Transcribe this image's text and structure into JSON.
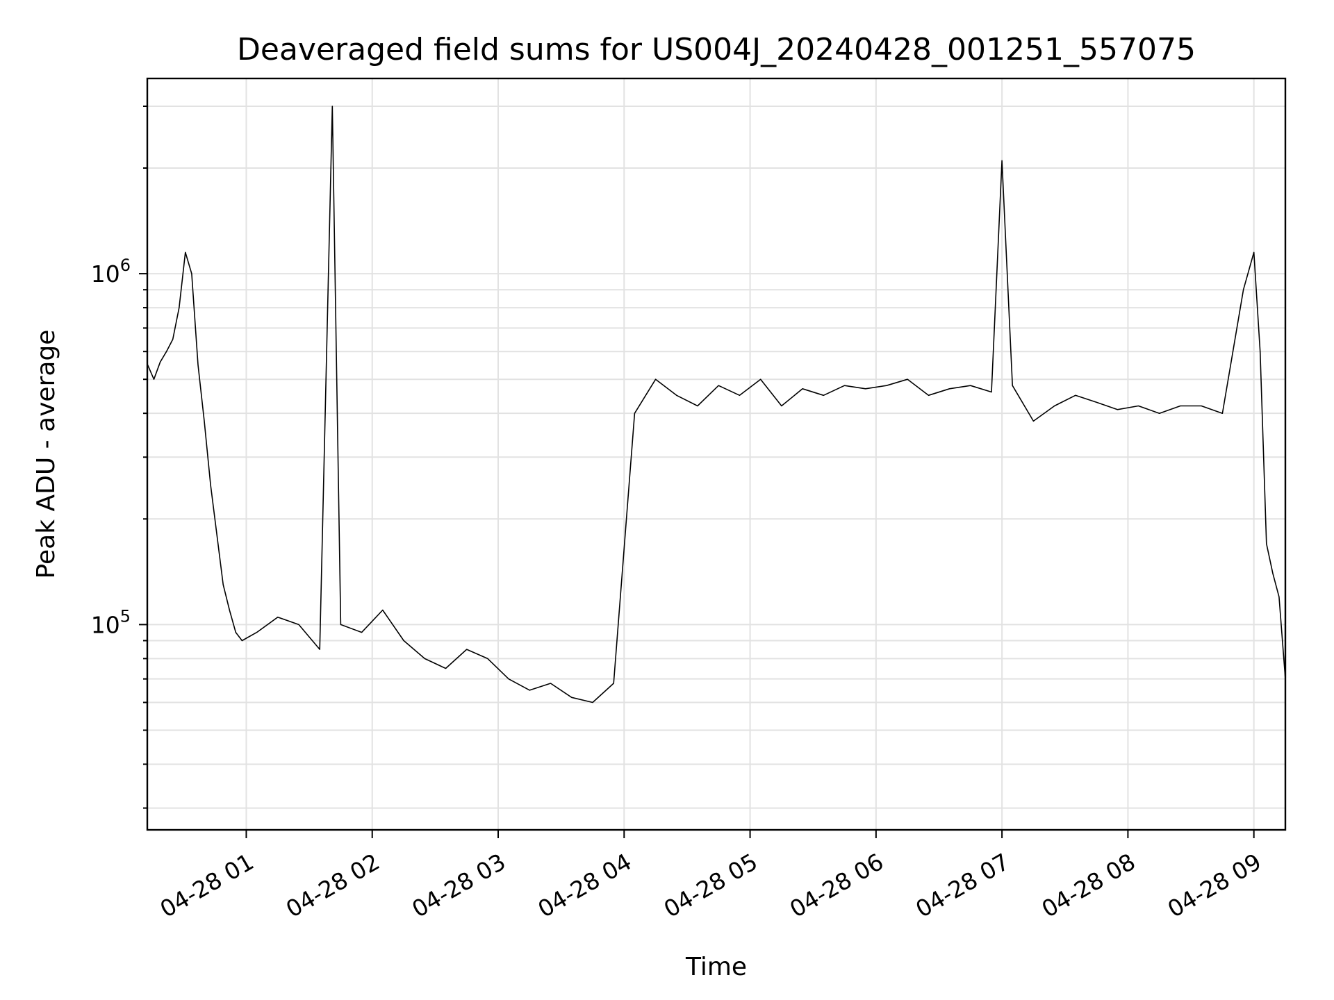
{
  "chart_data": {
    "type": "line",
    "title": "Deaveraged field sums for US004J_20240428_001251_557075",
    "xlabel": "Time",
    "ylabel": "Peak ADU - average",
    "yscale": "log",
    "ylim": [
      26000,
      3600000
    ],
    "xlim": [
      "2024-04-28 00:12:51",
      "2024-04-28 09:15:00"
    ],
    "x_ticks": [
      "2024-04-28 01:00",
      "2024-04-28 02:00",
      "2024-04-28 03:00",
      "2024-04-28 04:00",
      "2024-04-28 05:00",
      "2024-04-28 06:00",
      "2024-04-28 07:00",
      "2024-04-28 08:00",
      "2024-04-28 09:00"
    ],
    "x_tick_labels": [
      "04-28 01",
      "04-28 02",
      "04-28 03",
      "04-28 04",
      "04-28 05",
      "04-28 06",
      "04-28 07",
      "04-28 08",
      "04-28 09"
    ],
    "y_ticks": [
      {
        "value": 100000,
        "base": "10",
        "exp": "5"
      },
      {
        "value": 1000000,
        "base": "10",
        "exp": "6"
      }
    ],
    "grid": true,
    "line_color": "#000000",
    "series": [
      {
        "x": [
          "2024-04-28 00:13",
          "2024-04-28 00:16",
          "2024-04-28 00:19",
          "2024-04-28 00:22",
          "2024-04-28 00:25",
          "2024-04-28 00:28",
          "2024-04-28 00:31",
          "2024-04-28 00:34",
          "2024-04-28 00:37",
          "2024-04-28 00:40",
          "2024-04-28 00:43",
          "2024-04-28 00:46",
          "2024-04-28 00:49",
          "2024-04-28 00:52",
          "2024-04-28 00:55",
          "2024-04-28 00:58",
          "2024-04-28 01:05",
          "2024-04-28 01:15",
          "2024-04-28 01:25",
          "2024-04-28 01:35",
          "2024-04-28 01:41",
          "2024-04-28 01:45",
          "2024-04-28 01:55",
          "2024-04-28 02:05",
          "2024-04-28 02:15",
          "2024-04-28 02:25",
          "2024-04-28 02:35",
          "2024-04-28 02:45",
          "2024-04-28 02:55",
          "2024-04-28 03:05",
          "2024-04-28 03:15",
          "2024-04-28 03:25",
          "2024-04-28 03:35",
          "2024-04-28 03:45",
          "2024-04-28 03:55",
          "2024-04-28 04:05",
          "2024-04-28 04:15",
          "2024-04-28 04:25",
          "2024-04-28 04:35",
          "2024-04-28 04:45",
          "2024-04-28 04:55",
          "2024-04-28 05:05",
          "2024-04-28 05:15",
          "2024-04-28 05:25",
          "2024-04-28 05:35",
          "2024-04-28 05:45",
          "2024-04-28 05:55",
          "2024-04-28 06:05",
          "2024-04-28 06:15",
          "2024-04-28 06:25",
          "2024-04-28 06:35",
          "2024-04-28 06:45",
          "2024-04-28 06:55",
          "2024-04-28 07:00",
          "2024-04-28 07:05",
          "2024-04-28 07:15",
          "2024-04-28 07:25",
          "2024-04-28 07:35",
          "2024-04-28 07:45",
          "2024-04-28 07:55",
          "2024-04-28 08:05",
          "2024-04-28 08:15",
          "2024-04-28 08:25",
          "2024-04-28 08:35",
          "2024-04-28 08:45",
          "2024-04-28 08:55",
          "2024-04-28 09:00",
          "2024-04-28 09:03",
          "2024-04-28 09:06",
          "2024-04-28 09:09",
          "2024-04-28 09:12",
          "2024-04-28 09:15"
        ],
        "y": [
          550000,
          500000,
          560000,
          600000,
          650000,
          800000,
          1150000,
          1000000,
          550000,
          380000,
          250000,
          180000,
          130000,
          110000,
          95000,
          90000,
          95000,
          105000,
          100000,
          85000,
          3000000,
          100000,
          95000,
          110000,
          90000,
          80000,
          75000,
          85000,
          80000,
          70000,
          65000,
          68000,
          62000,
          60000,
          68000,
          400000,
          500000,
          450000,
          420000,
          480000,
          450000,
          500000,
          420000,
          470000,
          450000,
          480000,
          470000,
          480000,
          500000,
          450000,
          470000,
          480000,
          460000,
          2100000,
          480000,
          380000,
          420000,
          450000,
          430000,
          410000,
          420000,
          400000,
          420000,
          420000,
          400000,
          900000,
          1150000,
          600000,
          170000,
          140000,
          120000,
          70000
        ]
      }
    ]
  }
}
